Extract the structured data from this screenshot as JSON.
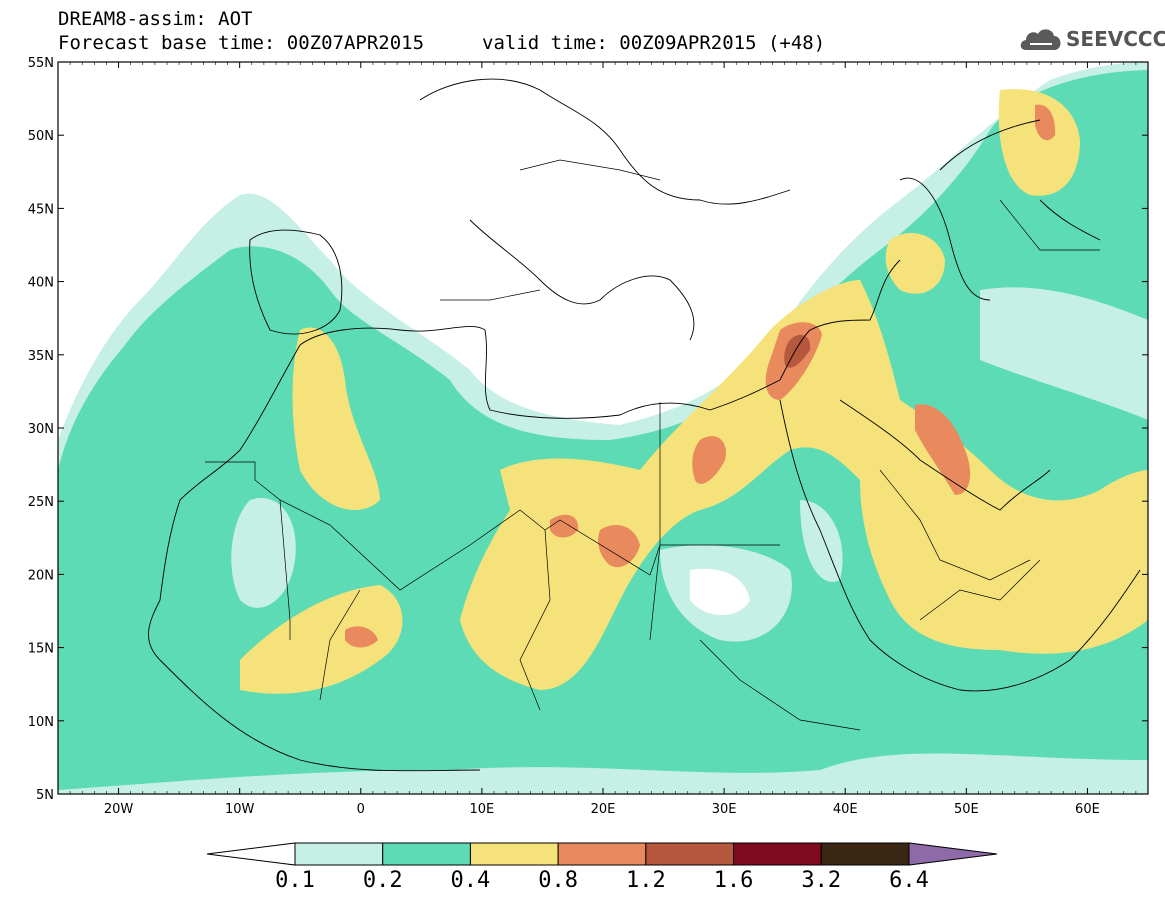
{
  "title": {
    "line1": "DREAM8-assim: AOT",
    "base": "Forecast base time: 00Z07APR2015",
    "valid": "valid time: 00Z09APR2015 (+48)"
  },
  "logo": {
    "text": "SEEVCCC",
    "icon": "cloud-icon"
  },
  "axes": {
    "lat_labels": [
      "55N",
      "50N",
      "45N",
      "40N",
      "35N",
      "30N",
      "25N",
      "20N",
      "15N",
      "10N",
      "5N"
    ],
    "lon_labels": [
      "20W",
      "10W",
      "0",
      "10E",
      "20E",
      "30E",
      "40E",
      "50E",
      "60E"
    ]
  },
  "map_extent": {
    "lon_min": -25,
    "lon_max": 65,
    "lat_min": 5,
    "lat_max": 55
  },
  "colorbar": {
    "labels": [
      "0.1",
      "0.2",
      "0.4",
      "0.8",
      "1.2",
      "1.6",
      "3.2",
      "6.4"
    ],
    "colors": [
      "#ffffff",
      "#c6efe6",
      "#5ddbb5",
      "#f5e27a",
      "#e88a5e",
      "#b5583e",
      "#7f0a1e",
      "#3b2614",
      "#8e6aa8"
    ]
  }
}
